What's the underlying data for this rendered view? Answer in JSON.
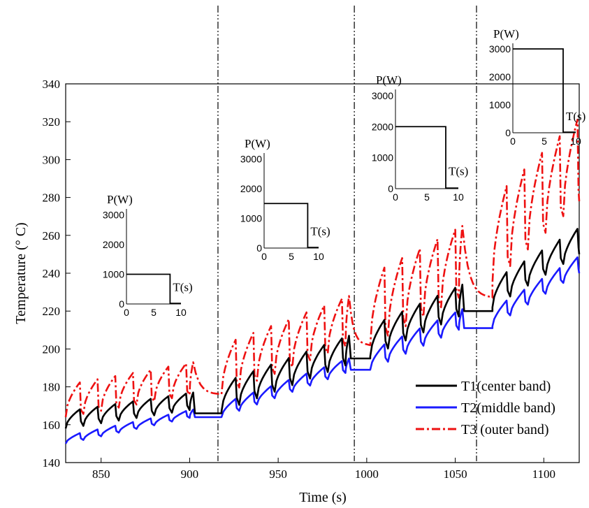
{
  "chart_data": {
    "type": "line",
    "xlabel": "Time (s)",
    "ylabel": "Temperature (° C)",
    "xlim": [
      830,
      1120
    ],
    "ylim": [
      140,
      340
    ],
    "xticks": [
      850,
      900,
      950,
      1000,
      1050,
      1100
    ],
    "yticks": [
      140,
      160,
      180,
      200,
      220,
      240,
      260,
      280,
      300,
      320,
      340
    ],
    "grid": false,
    "legend_position": "bottom-right",
    "colors": {
      "T1": "#000000",
      "T2": "#1a1aff",
      "T3": "#ee1111"
    },
    "phase_boundaries": [
      916,
      993,
      1062
    ],
    "segments": [
      {
        "start": 830,
        "end": 918,
        "power_W": 1000,
        "T1_base": [
          158,
          168
        ],
        "T2_base": [
          150,
          164
        ],
        "T3_base": [
          164,
          176
        ],
        "T1_peak": 177,
        "T2_peak": 168,
        "T3_peak": 193,
        "T1_plateau": 166,
        "T2_plateau": 164,
        "T3_plateau": 176
      },
      {
        "start": 918,
        "end": 1002,
        "power_W": 1500,
        "T1_base": [
          167,
          192
        ],
        "T2_base": [
          164,
          188
        ],
        "T3_base": [
          176,
          202
        ],
        "T1_peak": 207,
        "T2_peak": 195,
        "T3_peak": 228,
        "T1_plateau": 195,
        "T2_plateau": 189,
        "T3_plateau": 202
      },
      {
        "start": 1002,
        "end": 1071,
        "power_W": 2000,
        "T1_base": [
          196,
          218
        ],
        "T2_base": [
          189,
          211
        ],
        "T3_base": [
          202,
          228
        ],
        "T1_peak": 234,
        "T2_peak": 221,
        "T3_peak": 265,
        "T1_plateau": 220,
        "T2_plateau": 211,
        "T3_plateau": 227
      },
      {
        "start": 1071,
        "end": 1120,
        "power_W": 3000,
        "T1_base": [
          222,
          250
        ],
        "T2_base": [
          212,
          240
        ],
        "T3_base": [
          235,
          278
        ],
        "T1_peak": 264,
        "T2_peak": 249,
        "T3_peak": 322
      }
    ],
    "series": [
      {
        "name": "T1(center band)",
        "key": "T1"
      },
      {
        "name": "T2(middle band)",
        "key": "T2"
      },
      {
        "name": "T3 (outer band)",
        "key": "T3"
      }
    ],
    "insets": [
      {
        "ylabel": "P(W)",
        "xlabel": "T(s)",
        "yticks": [
          "0",
          "1000",
          "2000",
          "3000"
        ],
        "xticks": [
          "0",
          "5",
          "10"
        ],
        "power": 1000,
        "off_time": 8
      },
      {
        "ylabel": "P(W)",
        "xlabel": "T(s)",
        "yticks": [
          "0",
          "1000",
          "2000",
          "3000"
        ],
        "xticks": [
          "0",
          "5",
          "10"
        ],
        "power": 1500,
        "off_time": 8
      },
      {
        "ylabel": "P(W)",
        "xlabel": "T(s)",
        "yticks": [
          "0",
          "1000",
          "2000",
          "3000"
        ],
        "xticks": [
          "0",
          "5",
          "10"
        ],
        "power": 2000,
        "off_time": 8
      },
      {
        "ylabel": "P(W)",
        "xlabel": "T(s)",
        "yticks": [
          "0",
          "1000",
          "2000",
          "3000"
        ],
        "xticks": [
          "0",
          "5",
          "10"
        ],
        "power": 3000,
        "off_time": 8
      }
    ]
  }
}
